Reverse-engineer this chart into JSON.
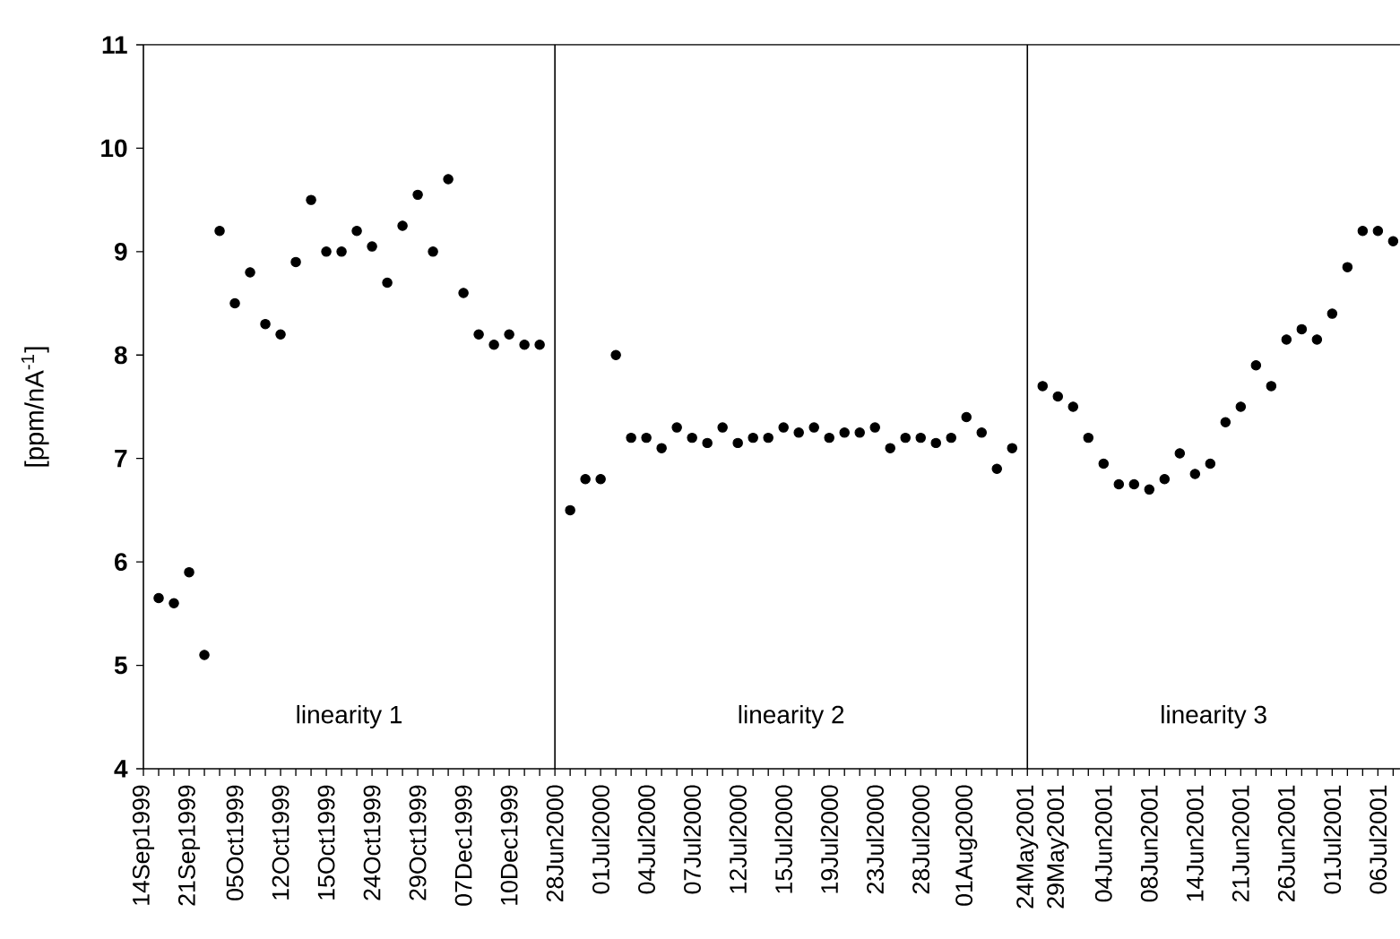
{
  "chart_data": {
    "type": "scatter",
    "ylabel": "[ppm/nA$^{-1}$]",
    "categories": [
      "14Sep1999",
      null,
      null,
      "21Sep1999",
      null,
      null,
      "05Oct1999",
      null,
      null,
      "12Oct1999",
      null,
      null,
      "15Oct1999",
      null,
      null,
      "24Oct1999",
      null,
      null,
      "29Oct1999",
      null,
      null,
      "07Dec1999",
      null,
      null,
      "10Dec1999",
      null,
      null,
      "28Jun2000",
      null,
      null,
      "01Jul2000",
      null,
      null,
      "04Jul2000",
      null,
      null,
      "07Jul2000",
      null,
      null,
      "12Jul2000",
      null,
      null,
      "15Jul2000",
      null,
      null,
      "19Jul2000",
      null,
      null,
      "23Jul2000",
      null,
      null,
      "28Jul2000",
      null,
      null,
      "01Aug2000",
      null,
      null,
      null,
      "24May2001",
      null,
      "29May2001",
      null,
      null,
      "04Jun2001",
      null,
      null,
      "08Jun2001",
      null,
      null,
      "14Jun2001",
      null,
      null,
      "21Jun2001",
      null,
      null,
      "26Jun2001",
      null,
      null,
      "01Jul2001",
      null,
      null,
      "06Jul2001",
      null
    ],
    "series": [
      {
        "color": "#000000",
        "values": [
          null,
          5.65,
          5.6,
          5.9,
          5.1,
          9.2,
          8.5,
          8.8,
          8.3,
          8.2,
          8.9,
          9.5,
          9.0,
          9.0,
          9.2,
          9.05,
          8.7,
          9.25,
          9.55,
          9.0,
          9.7,
          8.6,
          8.2,
          8.1,
          8.2,
          8.1,
          8.1,
          null,
          6.5,
          6.8,
          6.8,
          8.0,
          7.2,
          7.2,
          7.1,
          7.3,
          7.2,
          7.15,
          7.3,
          7.15,
          7.2,
          7.2,
          7.3,
          7.25,
          7.3,
          7.2,
          7.25,
          7.25,
          7.3,
          7.1,
          7.2,
          7.2,
          7.15,
          7.2,
          7.4,
          7.25,
          6.9,
          7.1,
          null,
          7.7,
          7.6,
          7.5,
          7.2,
          6.95,
          6.75,
          6.75,
          6.7,
          6.8,
          7.05,
          6.85,
          6.95,
          7.35,
          7.5,
          7.9,
          7.7,
          8.15,
          8.25,
          8.15,
          8.4,
          8.85,
          9.2,
          9.2,
          9.1
        ]
      }
    ],
    "ylim": [
      4,
      11
    ],
    "yticks": [
      4,
      5,
      6,
      7,
      8,
      9,
      10,
      11
    ],
    "ref_lines": [
      {
        "axis": "x",
        "value": "28Jun2000",
        "color": "#000000"
      },
      {
        "axis": "x",
        "value": "24May2001",
        "color": "#000000"
      }
    ],
    "annotations": [
      "linearity 1",
      "linearity 2",
      "linearity 3"
    ],
    "marker": "circle"
  }
}
